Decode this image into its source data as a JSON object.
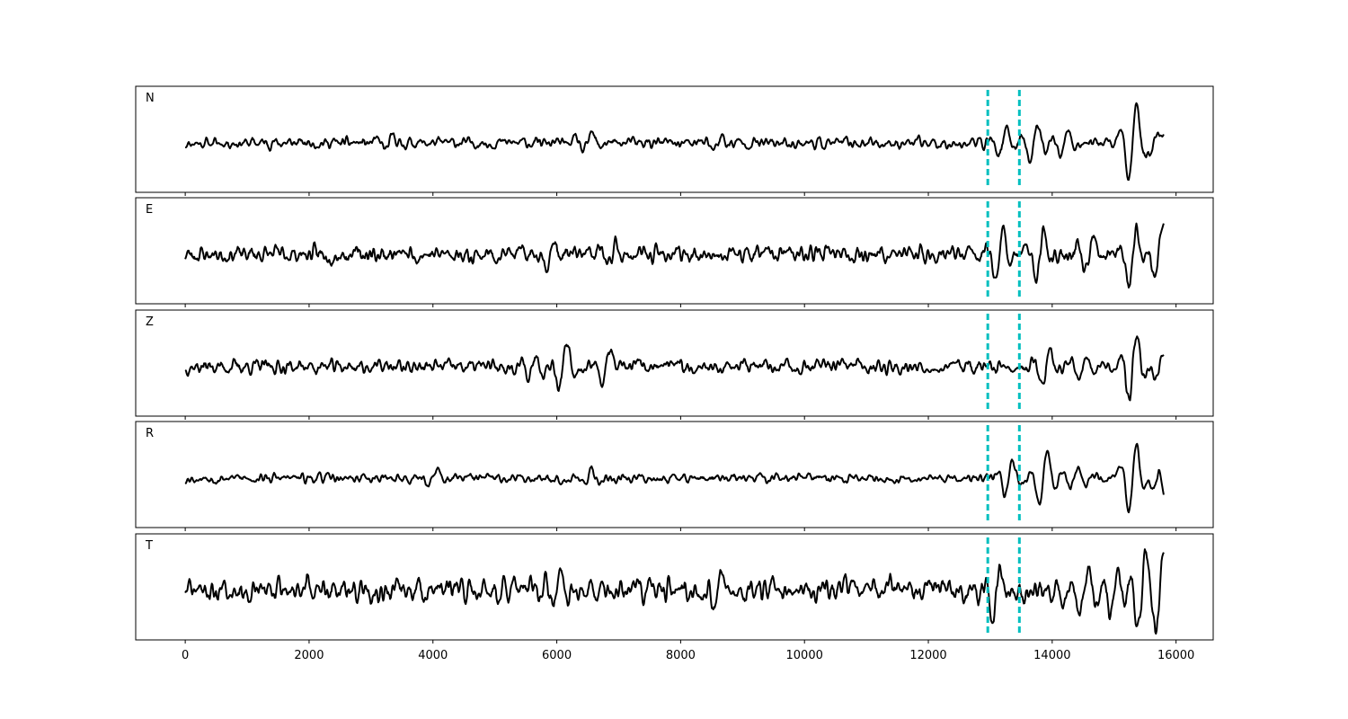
{
  "colors": {
    "trace": "#000000",
    "marker": "#00bfbf",
    "frame": "#000000",
    "background": "#ffffff"
  },
  "chart_data": {
    "type": "line",
    "title": "",
    "xlabel": "",
    "ylabel": "",
    "xlim": [
      -800,
      16600
    ],
    "xticks": [
      0,
      2000,
      4000,
      6000,
      8000,
      10000,
      12000,
      14000,
      16000
    ],
    "x_start": 0,
    "x_end": 15800,
    "ylim": [
      -1,
      1
    ],
    "grid": false,
    "legend": "none",
    "shared_x": true,
    "vertical_markers": [
      {
        "x": 12960,
        "style": "dashed",
        "color": "#00bfbf"
      },
      {
        "x": 13470,
        "style": "dashed",
        "color": "#00bfbf"
      }
    ],
    "panels": [
      {
        "name": "N",
        "seed": 11,
        "noise": 0.09,
        "bursts": [
          {
            "x": 3300,
            "amp": 0.16
          },
          {
            "x": 6500,
            "amp": 0.22
          },
          {
            "x": 8600,
            "amp": 0.14
          },
          {
            "x": 13200,
            "amp": 0.28
          },
          {
            "x": 13700,
            "amp": 0.45
          },
          {
            "x": 14200,
            "amp": 0.3
          },
          {
            "x": 15300,
            "amp": 0.85
          },
          {
            "x": 15650,
            "amp": 0.25
          }
        ],
        "end": 0.18
      },
      {
        "name": "E",
        "seed": 23,
        "noise": 0.14,
        "bursts": [
          {
            "x": 5900,
            "amp": 0.28
          },
          {
            "x": 6900,
            "amp": 0.3
          },
          {
            "x": 8800,
            "amp": 0.22
          },
          {
            "x": 13150,
            "amp": 0.55
          },
          {
            "x": 13800,
            "amp": 0.5
          },
          {
            "x": 14600,
            "amp": 0.38
          },
          {
            "x": 15300,
            "amp": 0.75
          },
          {
            "x": 15720,
            "amp": 0.4
          }
        ],
        "end": 0.65
      },
      {
        "name": "Z",
        "seed": 37,
        "noise": 0.12,
        "bursts": [
          {
            "x": 5600,
            "amp": 0.25
          },
          {
            "x": 6100,
            "amp": 0.45
          },
          {
            "x": 6800,
            "amp": 0.4
          },
          {
            "x": 13900,
            "amp": 0.45
          },
          {
            "x": 14500,
            "amp": 0.2
          },
          {
            "x": 15300,
            "amp": 0.85
          },
          {
            "x": 15720,
            "amp": 0.3
          }
        ],
        "end": 0.25
      },
      {
        "name": "R",
        "seed": 53,
        "noise": 0.08,
        "bursts": [
          {
            "x": 4000,
            "amp": 0.16
          },
          {
            "x": 6500,
            "amp": 0.2
          },
          {
            "x": 13300,
            "amp": 0.35
          },
          {
            "x": 13850,
            "amp": 0.6
          },
          {
            "x": 14350,
            "amp": 0.25
          },
          {
            "x": 15300,
            "amp": 0.9
          },
          {
            "x": 15700,
            "amp": 0.3
          }
        ],
        "end": -0.35
      },
      {
        "name": "T",
        "seed": 71,
        "noise": 0.2,
        "bursts": [
          {
            "x": 1900,
            "amp": 0.25
          },
          {
            "x": 6000,
            "amp": 0.35
          },
          {
            "x": 8600,
            "amp": 0.28
          },
          {
            "x": 13100,
            "amp": 0.45
          },
          {
            "x": 14500,
            "amp": 0.5
          },
          {
            "x": 15000,
            "amp": 0.4
          },
          {
            "x": 15450,
            "amp": 0.85
          },
          {
            "x": 15750,
            "amp": 0.75
          }
        ],
        "end": 0.8
      }
    ]
  }
}
